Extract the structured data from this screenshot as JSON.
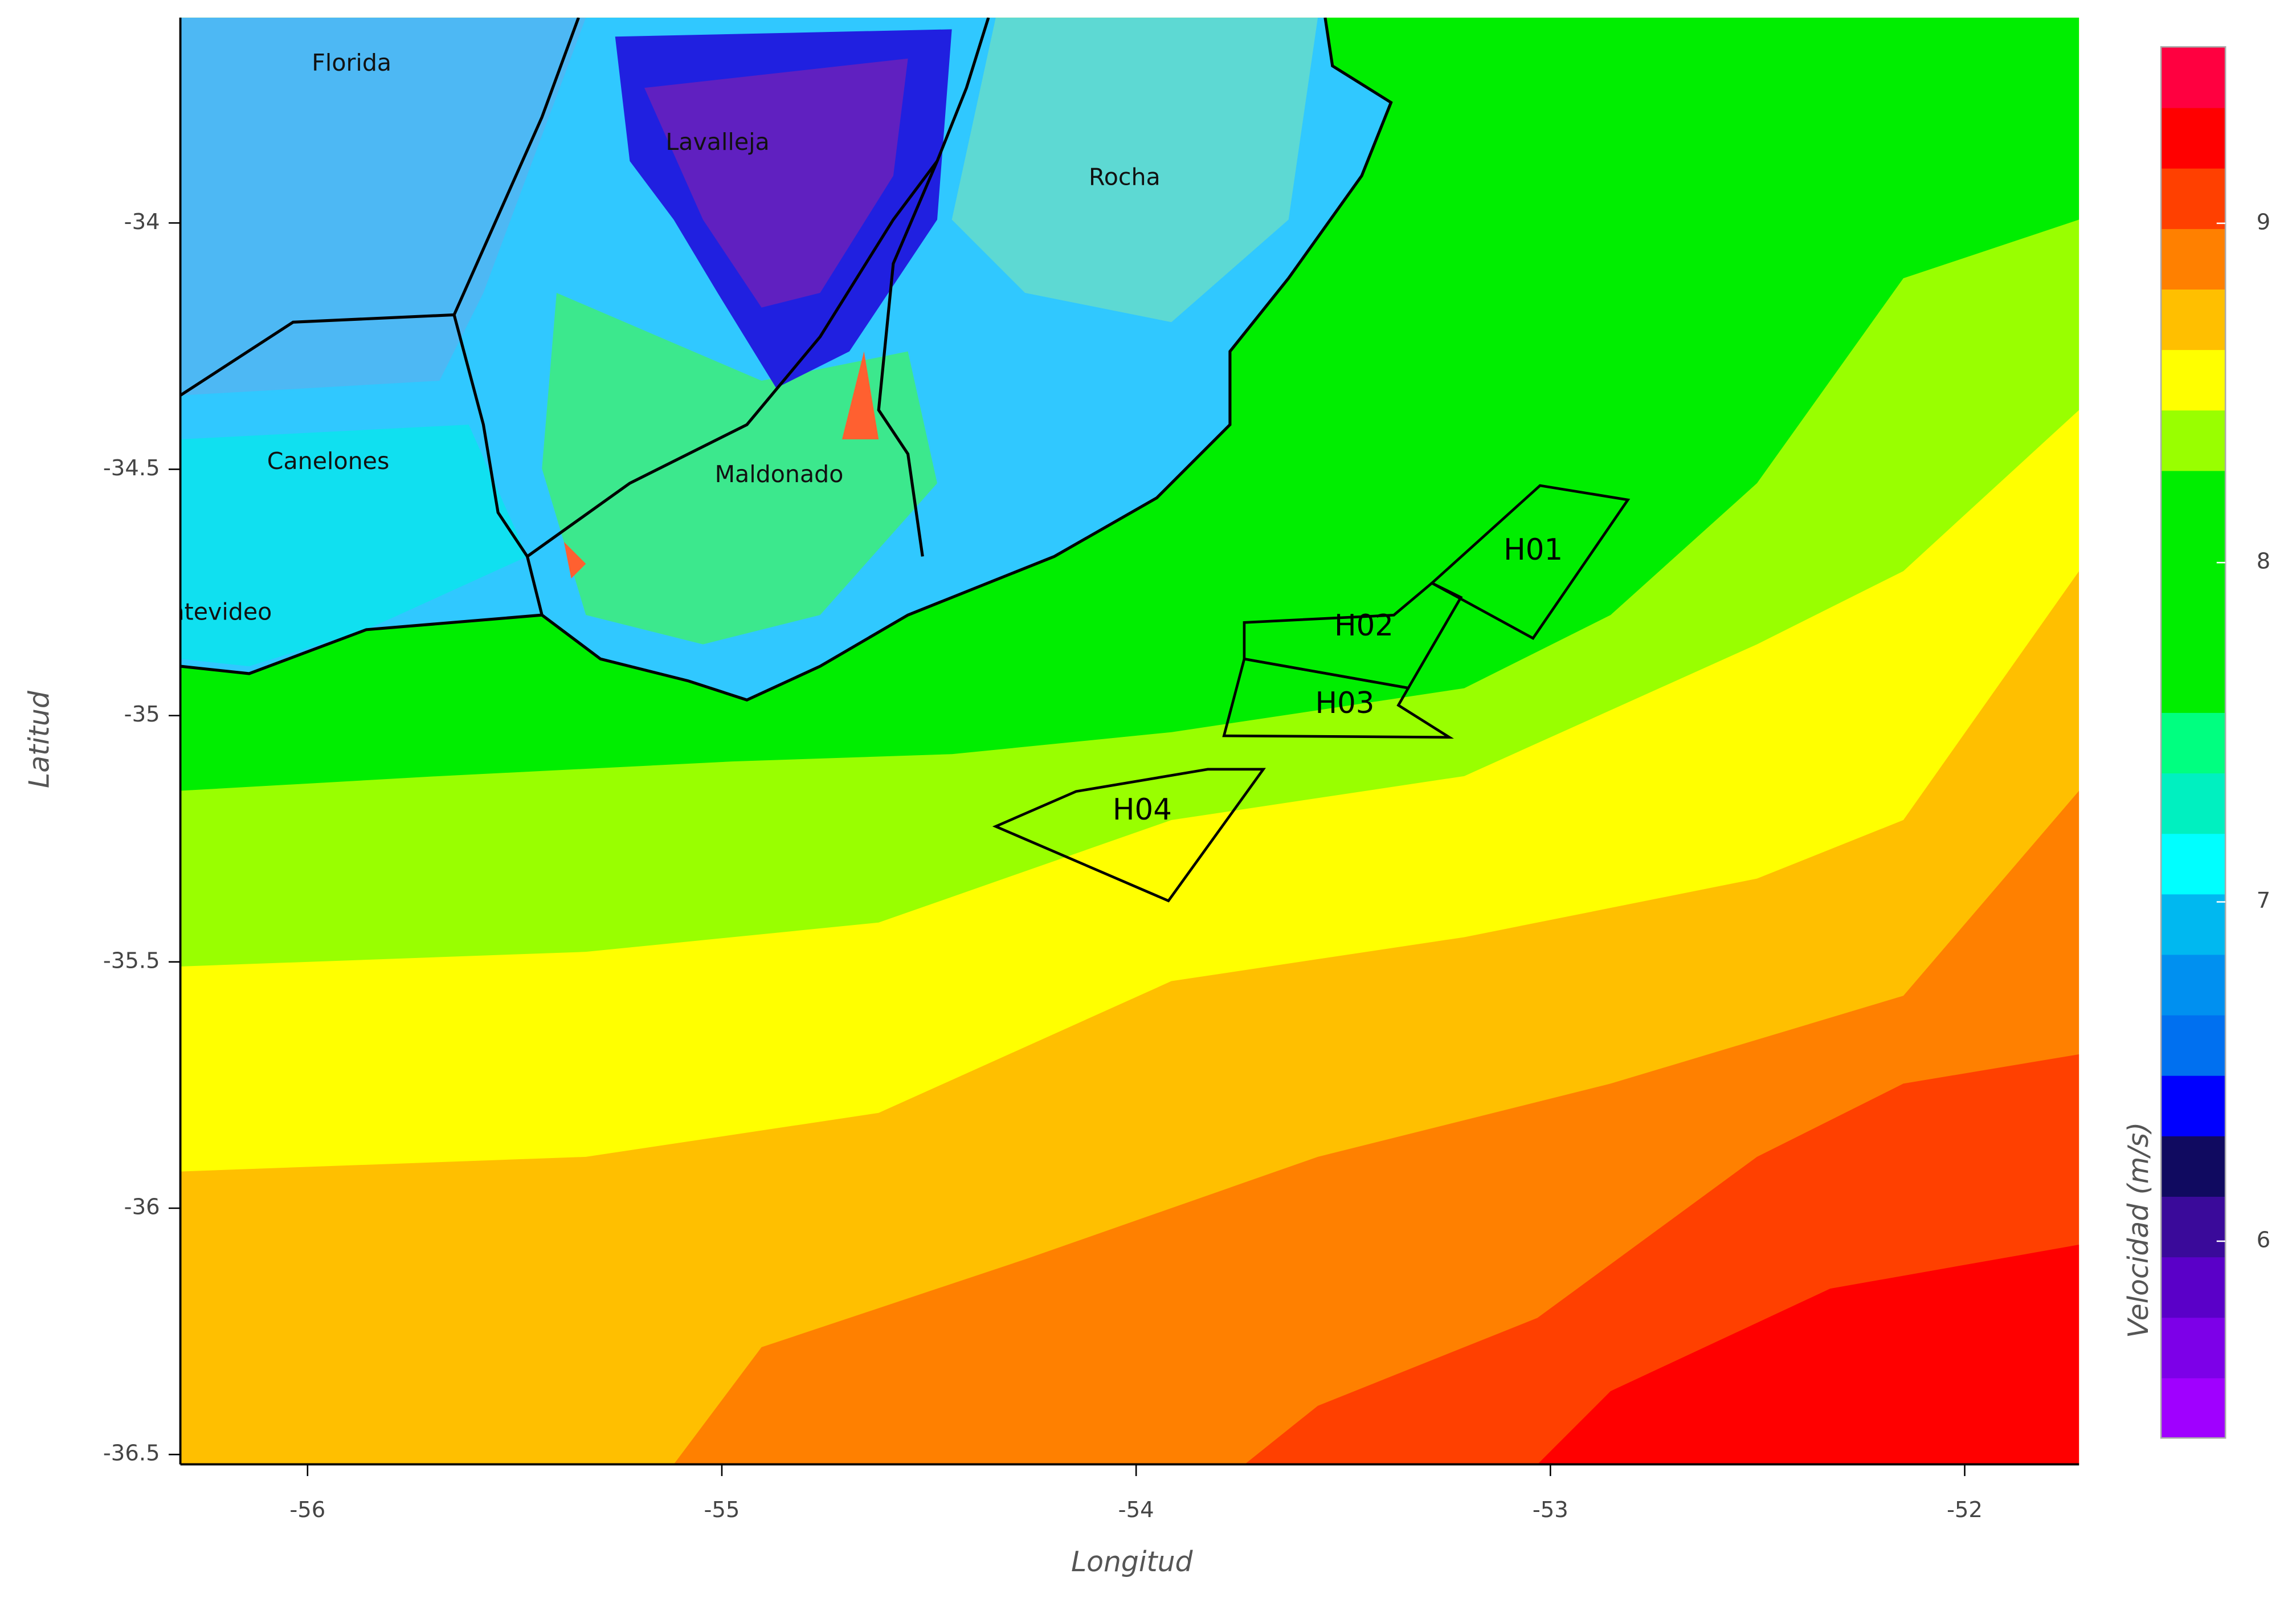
{
  "axes": {
    "x_label": "Longitud",
    "y_label": "Latitud",
    "xlim": [
      -56.307,
      -51.724
    ],
    "ylim": [
      -36.52,
      -33.583
    ],
    "xticks": [
      -56,
      -55,
      -54,
      -53,
      -52
    ],
    "yticks": [
      -34,
      -34.5,
      -35,
      -35.5,
      -36,
      -36.5
    ]
  },
  "places": [
    "Florida",
    "Lavalleja",
    "Rocha",
    "Canelones",
    "Maldonado",
    "Montevideo"
  ],
  "zones": [
    {
      "label": "H01",
      "lon": [
        -53.025,
        -52.813,
        -53.042,
        -53.286
      ],
      "lat": [
        -34.533,
        -34.562,
        -34.843,
        -34.731
      ]
    },
    {
      "label": "H02",
      "lon": [
        -53.739,
        -53.378,
        -53.286,
        -53.216,
        -53.343,
        -53.739
      ],
      "lat": [
        -34.811,
        -34.796,
        -34.731,
        -34.76,
        -34.944,
        -34.885
      ]
    },
    {
      "label": "H03",
      "lon": [
        -53.739,
        -53.343,
        -53.367,
        -53.244,
        -53.788
      ],
      "lat": [
        -34.885,
        -34.944,
        -34.979,
        -35.044,
        -35.041
      ]
    },
    {
      "label": "H04",
      "lon": [
        -54.339,
        -54.145,
        -53.827,
        -53.693,
        -53.922
      ],
      "lat": [
        -35.225,
        -35.154,
        -35.109,
        -35.109,
        -35.376
      ]
    }
  ],
  "colorbar": {
    "title": "Velocidad (m/s)",
    "clim": [
      5.42,
      9.52
    ],
    "ticks": [
      6,
      7,
      8,
      9
    ],
    "colors": [
      "#a000ff",
      "#7d00e8",
      "#5a00c8",
      "#3a0a9a",
      "#100a60",
      "#0000ff",
      "#0070f0",
      "#0090f0",
      "#00b8f0",
      "#00ffff",
      "#00f0c0",
      "#00ff80",
      "#00ee00",
      "#00ee00",
      "#00ee00",
      "#00ee00",
      "#99ff00",
      "#ffff00",
      "#ffbf00",
      "#ff8000",
      "#ff4000",
      "#ff0000",
      "#ff0040"
    ]
  }
}
